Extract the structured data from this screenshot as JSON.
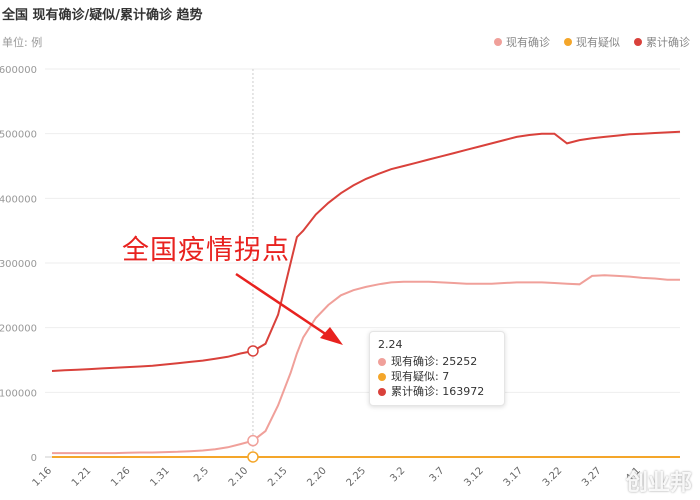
{
  "chart_data": {
    "type": "line",
    "title": "全国 现有确诊/疑似/累计确诊 趋势",
    "unit_label": "单位: 例",
    "ylim": [
      0,
      600000
    ],
    "y_ticks": [
      "600000",
      "500000",
      "400000",
      "300000",
      "200000",
      "100000",
      "0"
    ],
    "x_ticks": [
      "1.16",
      "1.21",
      "1.26",
      "1.31",
      "2.5",
      "2.10",
      "2.15",
      "2.20",
      "2.25",
      "3.2",
      "3.7",
      "3.12",
      "3.17",
      "3.22",
      "3.27",
      "4.1"
    ],
    "x_days": [
      0,
      2,
      4,
      6,
      8,
      10,
      12,
      14,
      16,
      18,
      20,
      22,
      24,
      26,
      28,
      30,
      32,
      34,
      36,
      38,
      39,
      40,
      42,
      44,
      46,
      48,
      50,
      52,
      54,
      56,
      58,
      60,
      62,
      64,
      66,
      68,
      70,
      72,
      74,
      76,
      78,
      80,
      82,
      84,
      86,
      88,
      90,
      92,
      94,
      96,
      98,
      100
    ],
    "legend_position": "top-right",
    "series": [
      {
        "name": "现有确诊",
        "color": "#f0a09a",
        "values": [
          6000,
          6000,
          6000,
          6000,
          6000,
          6000,
          6500,
          7000,
          7000,
          7500,
          8000,
          9000,
          10000,
          12000,
          15000,
          20000,
          25252,
          40000,
          80000,
          130000,
          160000,
          185000,
          215000,
          235000,
          250000,
          258000,
          263000,
          267000,
          270000,
          271000,
          271000,
          271000,
          270000,
          269000,
          268000,
          268000,
          268000,
          269000,
          270000,
          270000,
          270000,
          269000,
          268000,
          267000,
          280000,
          281000,
          280000,
          279000,
          277000,
          276000,
          274000,
          274000
        ]
      },
      {
        "name": "现有疑似",
        "color": "#f4a62a",
        "values": [
          2,
          2,
          3,
          3,
          4,
          4,
          4,
          5,
          5,
          5,
          5,
          6,
          6,
          6,
          6,
          7,
          7,
          7,
          7,
          7,
          7,
          7,
          7,
          7,
          7,
          7,
          7,
          7,
          7,
          7,
          7,
          7,
          7,
          7,
          7,
          7,
          7,
          7,
          7,
          7,
          7,
          7,
          7,
          7,
          7,
          7,
          7,
          7,
          7,
          7,
          7,
          7
        ]
      },
      {
        "name": "累计确诊",
        "color": "#d9413b",
        "values": [
          133000,
          134000,
          135000,
          136000,
          137000,
          138000,
          139000,
          140000,
          141000,
          143000,
          145000,
          147000,
          149000,
          152000,
          155000,
          160000,
          163972,
          175000,
          220000,
          300000,
          340000,
          350000,
          375000,
          393000,
          408000,
          420000,
          430000,
          438000,
          445000,
          450000,
          455000,
          460000,
          465000,
          470000,
          475000,
          480000,
          485000,
          490000,
          495000,
          498000,
          500000,
          500000,
          485000,
          490000,
          493000,
          495000,
          497000,
          499000,
          500000,
          501000,
          502000,
          503000
        ]
      }
    ]
  },
  "tooltip": {
    "date": "2.24",
    "rows": [
      {
        "label": "现有确诊: 25252",
        "color": "#f0a09a"
      },
      {
        "label": "现有疑似: 7",
        "color": "#f4a62a"
      },
      {
        "label": "累计确诊: 163972",
        "color": "#d9413b"
      }
    ]
  },
  "annotation": {
    "text": "全国疫情拐点",
    "color": "#e8221f"
  },
  "watermark": "创业邦"
}
